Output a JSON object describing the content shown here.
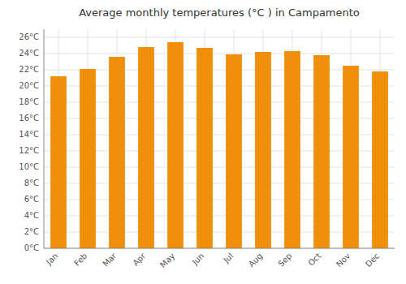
{
  "chart_data": {
    "type": "bar",
    "title": "Average monthly temperatures (°C ) in Campamento",
    "categories": [
      "Jan",
      "Feb",
      "Mar",
      "Apr",
      "May",
      "Jun",
      "Jul",
      "Aug",
      "Sep",
      "Oct",
      "Nov",
      "Dec"
    ],
    "values": [
      21.2,
      22.1,
      23.6,
      24.8,
      25.4,
      24.7,
      23.9,
      24.2,
      24.3,
      23.8,
      22.5,
      21.8
    ],
    "color": "#F0900A",
    "ylim": [
      0,
      27
    ],
    "yticks": [
      {
        "value": 0,
        "label": "0°C"
      },
      {
        "value": 2,
        "label": "2°C"
      },
      {
        "value": 4,
        "label": "4°C"
      },
      {
        "value": 6,
        "label": "6°C"
      },
      {
        "value": 8,
        "label": "8°C"
      },
      {
        "value": 10,
        "label": "10°C"
      },
      {
        "value": 12,
        "label": "12°C"
      },
      {
        "value": 14,
        "label": "14°C"
      },
      {
        "value": 16,
        "label": "16°C"
      },
      {
        "value": 18,
        "label": "18°C"
      },
      {
        "value": 20,
        "label": "20°C"
      },
      {
        "value": 22,
        "label": "22°C"
      },
      {
        "value": 24,
        "label": "24°C"
      },
      {
        "value": 26,
        "label": "26°C"
      }
    ],
    "grid": true
  }
}
